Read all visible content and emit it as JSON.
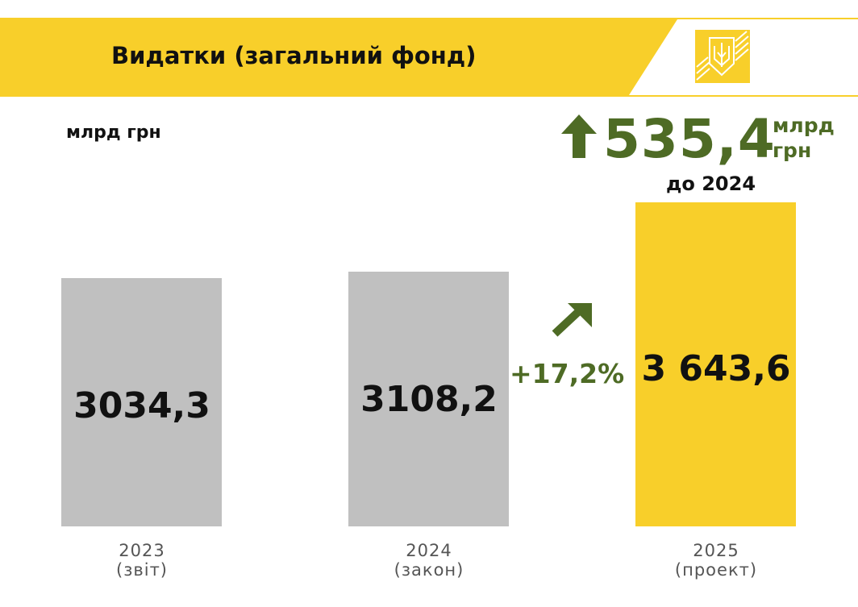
{
  "header": {
    "title": "Видатки (загальний фонд)",
    "logo": "ukraine-trident-emblem"
  },
  "colors": {
    "yellow": "#F8CF2A",
    "gray": "#C0C0C0",
    "green": "#4E6B25"
  },
  "chart_data": {
    "type": "bar",
    "title": "Видатки (загальний фонд)",
    "ylabel": "млрд грн",
    "categories": [
      "2023",
      "2024",
      "2025"
    ],
    "category_notes": [
      "(звіт)",
      "(закон)",
      "(проект)"
    ],
    "values": [
      3034.3,
      3108.2,
      3643.6
    ],
    "value_labels": [
      "3034,3",
      "3108,2",
      "3 643,6"
    ],
    "ylim": [
      0,
      3650
    ],
    "grid": false,
    "annotations": {
      "growth_pct": "+17,2%",
      "delta_value": "535,4",
      "delta_unit": "млрд грн",
      "delta_ref": "до 2024"
    }
  }
}
